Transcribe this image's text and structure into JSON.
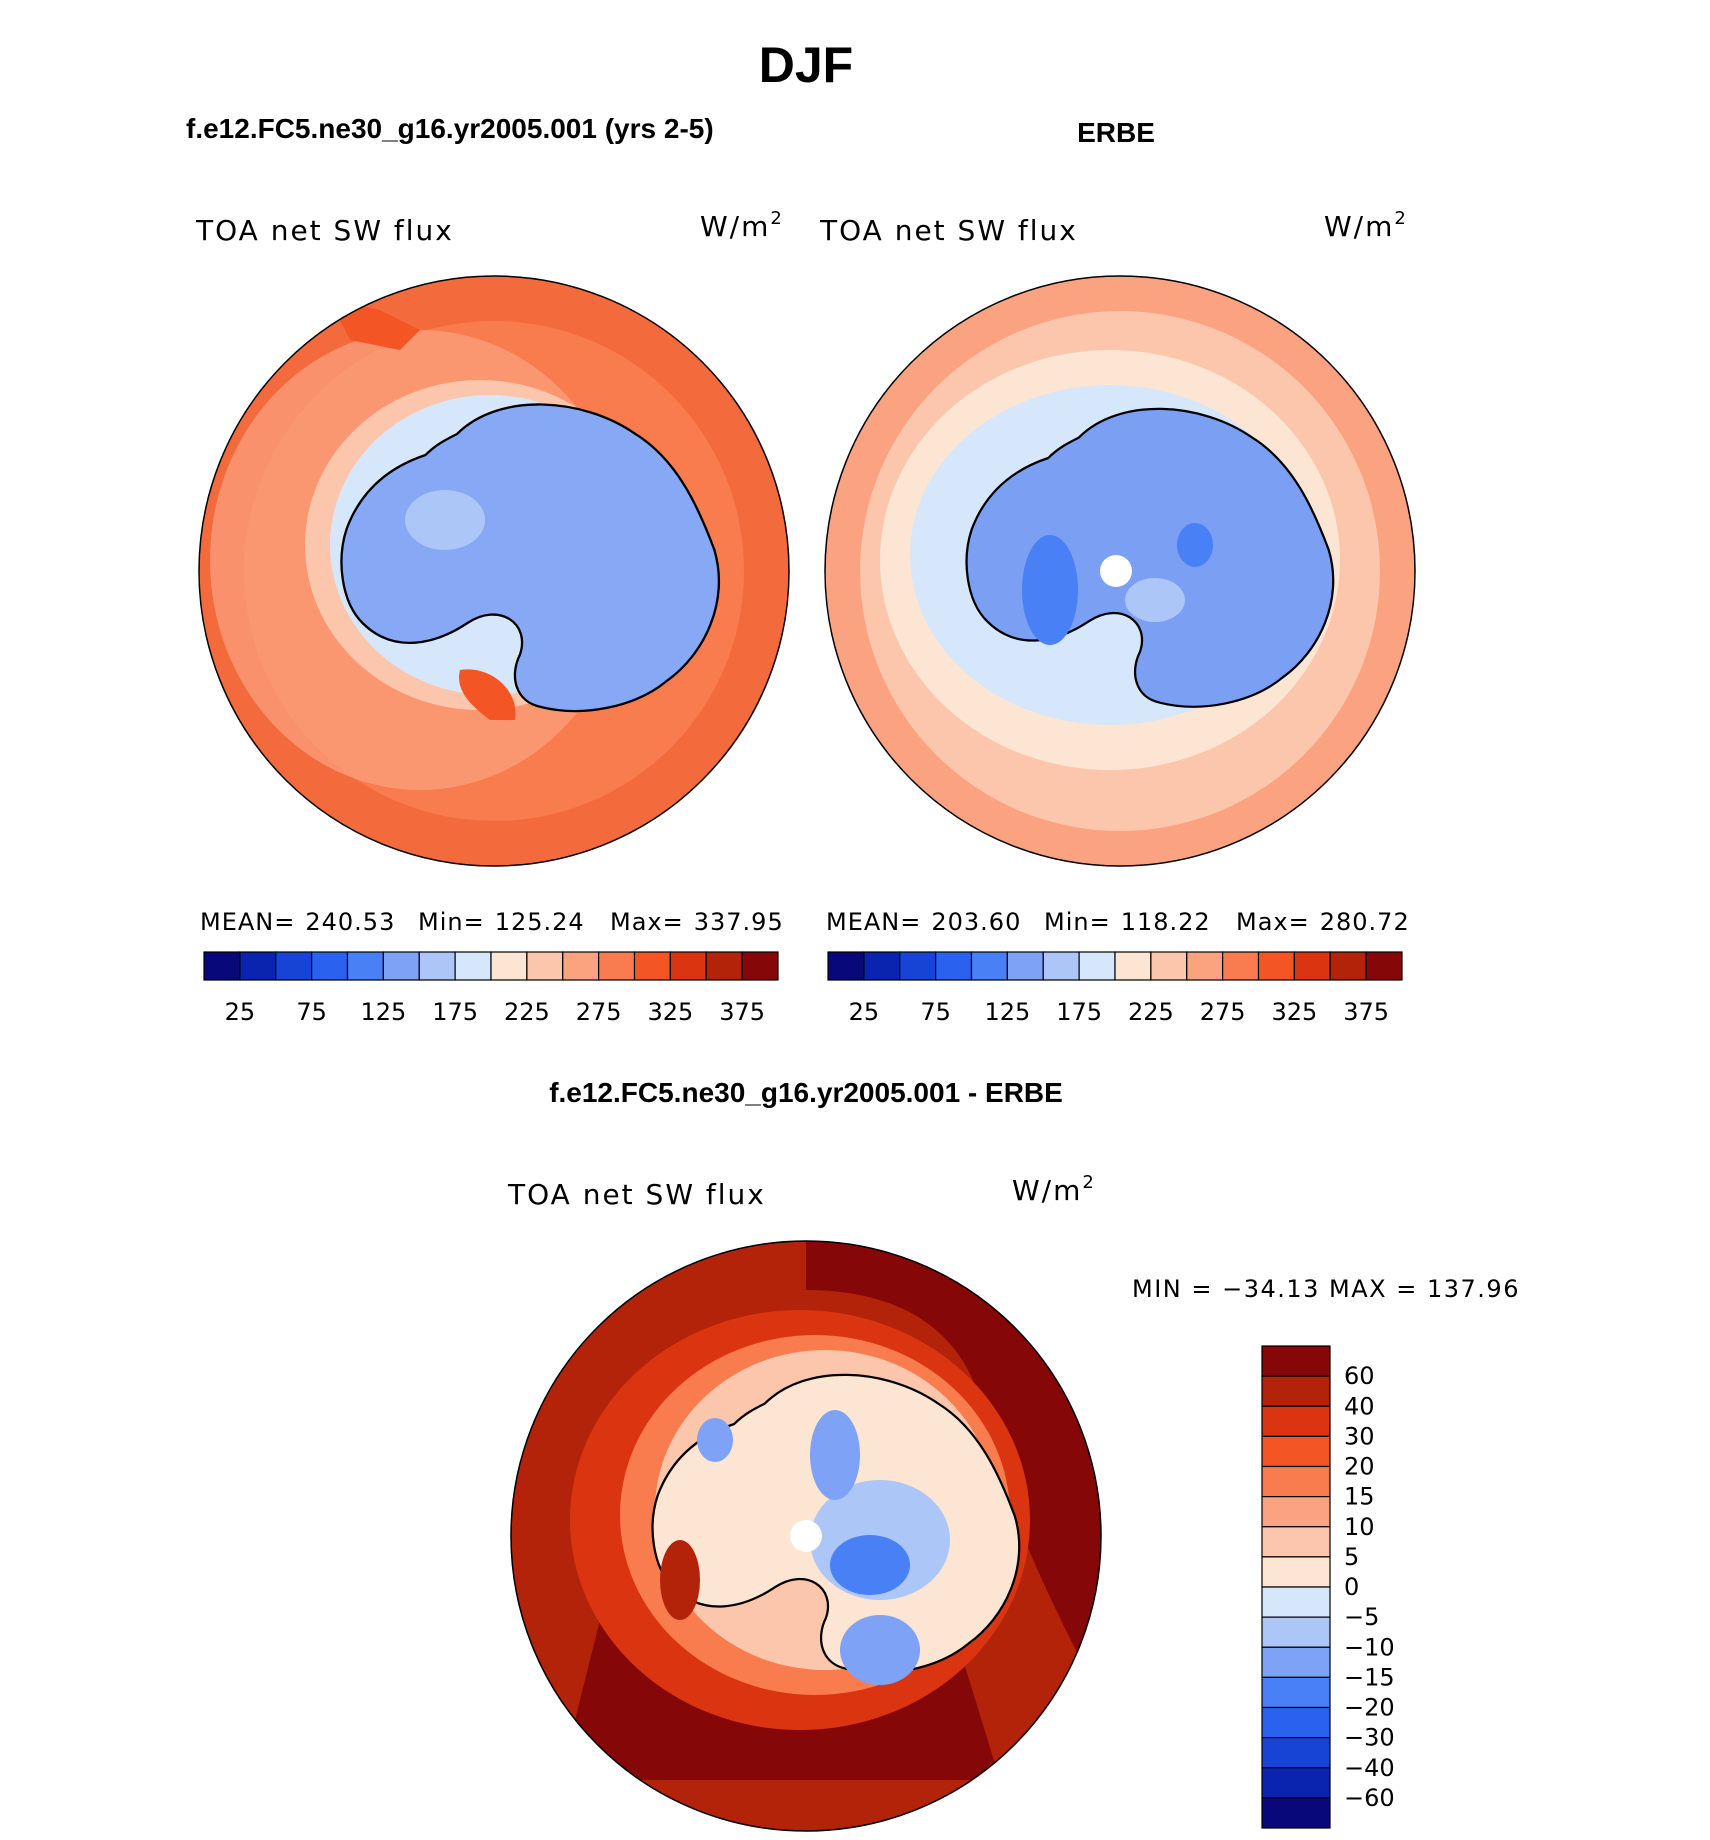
{
  "title": "DJF",
  "panels": [
    {
      "id": "model",
      "header": "f.e12.FC5.ne30_g16.yr2005.001 (yrs 2-5)",
      "variable": "TOA net SW flux",
      "units": "W/m",
      "units_sup": "2",
      "stats": {
        "mean_label": "MEAN=",
        "mean": "240.53",
        "min_label": "Min=",
        "min": "125.24",
        "max_label": "Max=",
        "max": "337.95"
      },
      "levels": [
        "25",
        "75",
        "125",
        "175",
        "225",
        "275",
        "325",
        "375"
      ]
    },
    {
      "id": "obs",
      "header": "ERBE",
      "variable": "TOA net SW flux",
      "units": "W/m",
      "units_sup": "2",
      "stats": {
        "mean_label": "MEAN=",
        "mean": "203.60",
        "min_label": "Min=",
        "min": "118.22",
        "max_label": "Max=",
        "max": "280.72"
      },
      "levels": [
        "25",
        "75",
        "125",
        "175",
        "225",
        "275",
        "325",
        "375"
      ]
    }
  ],
  "diff_panel": {
    "header": "f.e12.FC5.ne30_g16.yr2005.001 - ERBE",
    "variable": "TOA net SW flux",
    "units": "W/m",
    "units_sup": "2",
    "stats_text": "MIN = −34.13 MAX = 137.96",
    "levels": [
      "60",
      "40",
      "30",
      "20",
      "15",
      "10",
      "5",
      "0",
      "−5",
      "−10",
      "−15",
      "−20",
      "−30",
      "−40",
      "−60"
    ]
  },
  "colors": {
    "abs_scale": [
      "#08087a",
      "#0a24b0",
      "#1844d6",
      "#2a62ef",
      "#4a80f5",
      "#7ea2f5",
      "#abc6f7",
      "#d6e6fb",
      "#fde5d3",
      "#fcc6ac",
      "#fba280",
      "#f97c4e",
      "#f45524",
      "#da3510",
      "#b3230a",
      "#860707"
    ],
    "diff_scale": [
      "#860707",
      "#b3230a",
      "#da3510",
      "#f45524",
      "#f97c4e",
      "#fba280",
      "#fcc6ac",
      "#fde5d3",
      "#d6e6fb",
      "#abc6f7",
      "#7ea2f5",
      "#4a80f5",
      "#2a62ef",
      "#1844d6",
      "#0a24b0",
      "#08087a"
    ],
    "antarctica_model": "#87a9f5",
    "antarctica_obs": "#7a9ff3",
    "ocean_model": "#f36a3c",
    "ocean_obs": "#fbc1a5",
    "coastline": "#000000"
  }
}
